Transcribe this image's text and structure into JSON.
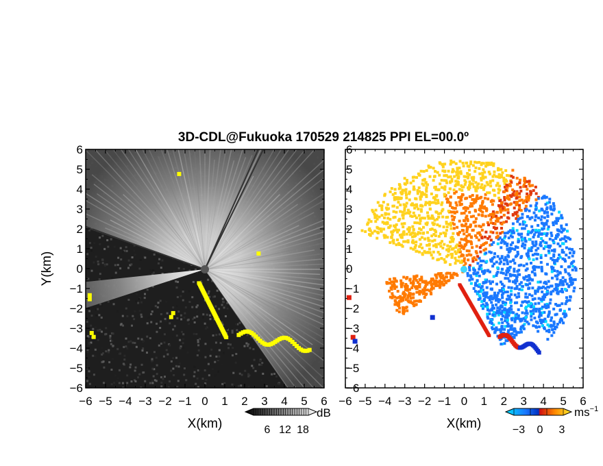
{
  "chart_data": [
    {
      "type": "heatmap",
      "title": "3D-CDL@Fukuoka 170529 214825 PPI EL=00.0º",
      "panel": "left",
      "quantity": "reflectivity / SNR",
      "xlabel": "X(km)",
      "ylabel": "Y(km)",
      "xlim": [
        -6,
        6
      ],
      "ylim": [
        -6,
        6
      ],
      "xticks": [
        "−6",
        "−5",
        "−4",
        "−3",
        "−2",
        "−1",
        "0",
        "1",
        "2",
        "3",
        "4",
        "5",
        "6"
      ],
      "yticks": [
        "6",
        "5",
        "4",
        "3",
        "2",
        "1",
        "0",
        "−1",
        "−2",
        "−3",
        "−4",
        "−5",
        "−6"
      ],
      "colorbar": {
        "unit": "dB",
        "ticks": [
          "6",
          "12",
          "18"
        ],
        "colormap": "grayscale",
        "range": [
          0,
          24
        ]
      },
      "highlight_color": "#ffff00",
      "background": "#1e1e1e"
    },
    {
      "type": "heatmap",
      "panel": "right",
      "quantity": "radial velocity",
      "xlabel": "X(km)",
      "xlim": [
        -6,
        6
      ],
      "ylim": [
        -6,
        6
      ],
      "xticks": [
        "−6",
        "−5",
        "−4",
        "−3",
        "−2",
        "−1",
        "0",
        "1",
        "2",
        "3",
        "4",
        "5",
        "6"
      ],
      "yticks": [
        "6",
        "5",
        "4",
        "3",
        "2",
        "1",
        "0",
        "−1",
        "−2",
        "−3",
        "−4",
        "−5",
        "−6"
      ],
      "colorbar": {
        "unit": "ms",
        "unit_exp": "−1",
        "ticks": [
          "−3",
          "0",
          "3"
        ],
        "colormap": "cyan-blue-red-orange-yellow",
        "range": [
          -5,
          5
        ]
      },
      "colors": {
        "approaching": "#1a78ff",
        "receding": "#ff7a00",
        "far_receding": "#ffd21e"
      }
    }
  ]
}
